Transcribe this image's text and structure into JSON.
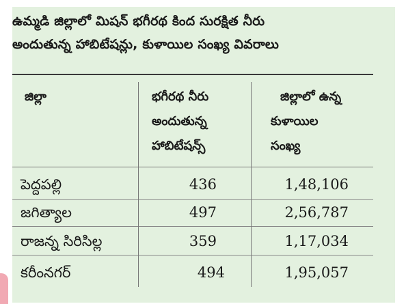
{
  "title": {
    "line1": "ఉమ్మడి జిల్లాలో మిషన్ భగీరథ కింద సురక్షిత నీరు",
    "line2": "అందుతున్న హాబిటేషన్లు, కుళాయిల సంఖ్య వివరాలు"
  },
  "table": {
    "headers": {
      "district": "జిల్లా",
      "habitations": [
        "భగీరథ నీరు",
        "అందుతున్న",
        "హాబిటేషన్స్"
      ],
      "taps": [
        "జిల్లాలో ఉన్న",
        "కుళాయిల",
        "సంఖ్య"
      ]
    },
    "rows": [
      {
        "district": "పెద్దపల్లి",
        "habitations": "436",
        "taps": "1,48,106"
      },
      {
        "district": "జగిత్యాల",
        "habitations": "497",
        "taps": "2,56,787"
      },
      {
        "district": "రాజన్న సిరిసిల్ల",
        "habitations": "359",
        "taps": "1,17,034"
      },
      {
        "district": "కరీంనగర్",
        "habitations": "494",
        "taps": "1,95,057"
      }
    ]
  },
  "colors": {
    "panel_background": "#e3f1df",
    "text": "#1a1a1a",
    "rules": "#3a3a3a"
  }
}
